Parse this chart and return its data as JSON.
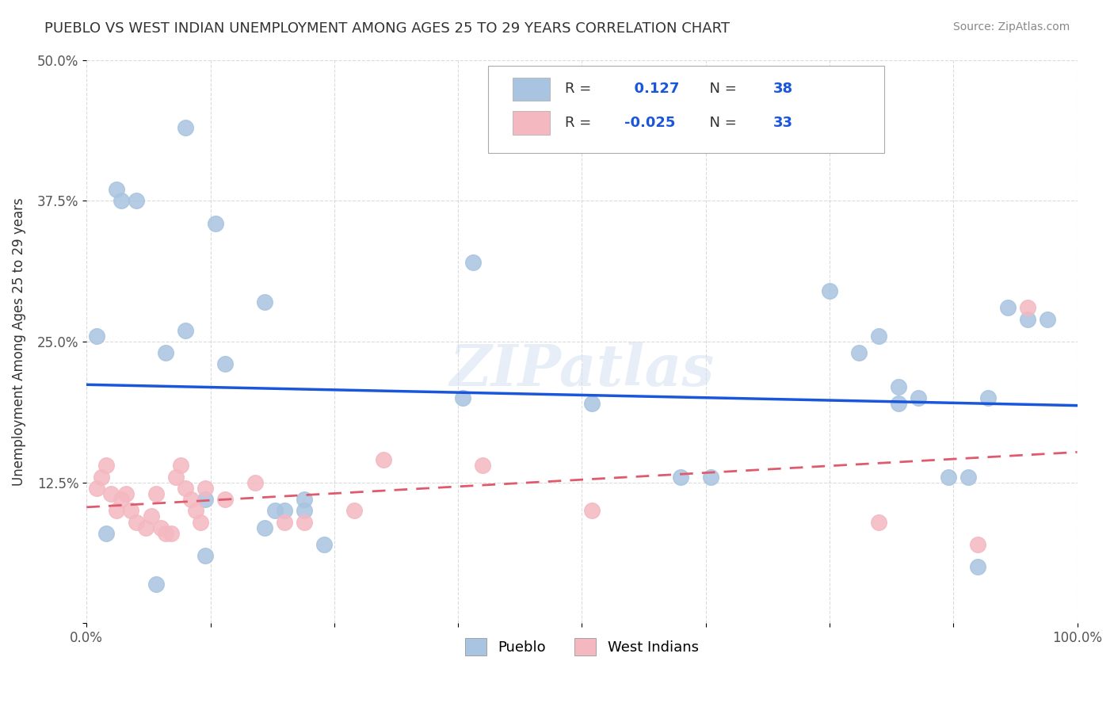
{
  "title": "PUEBLO VS WEST INDIAN UNEMPLOYMENT AMONG AGES 25 TO 29 YEARS CORRELATION CHART",
  "source": "Source: ZipAtlas.com",
  "xlabel": "",
  "ylabel": "Unemployment Among Ages 25 to 29 years",
  "xlim": [
    0,
    1.0
  ],
  "ylim": [
    0,
    0.5
  ],
  "xticks": [
    0.0,
    0.125,
    0.25,
    0.375,
    0.5,
    0.625,
    0.75,
    0.875,
    1.0
  ],
  "xticklabels": [
    "0.0%",
    "",
    "",
    "",
    "",
    "",
    "",
    "",
    "100.0%"
  ],
  "yticks": [
    0.0,
    0.125,
    0.25,
    0.375,
    0.5
  ],
  "yticklabels": [
    "",
    "12.5%",
    "25.0%",
    "37.5%",
    "50.0%"
  ],
  "pueblo_color": "#a8c4e0",
  "west_indian_color": "#f4b8c1",
  "pueblo_line_color": "#1a56db",
  "west_indian_line_color": "#e05a6e",
  "pueblo_r": 0.127,
  "pueblo_n": 38,
  "west_indian_r": -0.025,
  "west_indian_n": 33,
  "watermark": "ZIPatlas",
  "pueblo_x": [
    0.02,
    0.05,
    0.03,
    0.035,
    0.1,
    0.13,
    0.01,
    0.08,
    0.1,
    0.12,
    0.18,
    0.22,
    0.18,
    0.2,
    0.24,
    0.39,
    0.38,
    0.07,
    0.12,
    0.14,
    0.19,
    0.22,
    0.51,
    0.63,
    0.75,
    0.8,
    0.82,
    0.84,
    0.87,
    0.89,
    0.91,
    0.93,
    0.95,
    0.97,
    0.6,
    0.78,
    0.82,
    0.9
  ],
  "pueblo_y": [
    0.08,
    0.375,
    0.385,
    0.375,
    0.44,
    0.355,
    0.255,
    0.24,
    0.26,
    0.11,
    0.285,
    0.11,
    0.085,
    0.1,
    0.07,
    0.32,
    0.2,
    0.035,
    0.06,
    0.23,
    0.1,
    0.1,
    0.195,
    0.13,
    0.295,
    0.255,
    0.195,
    0.2,
    0.13,
    0.13,
    0.2,
    0.28,
    0.27,
    0.27,
    0.13,
    0.24,
    0.21,
    0.05
  ],
  "west_indian_x": [
    0.01,
    0.015,
    0.02,
    0.025,
    0.03,
    0.035,
    0.04,
    0.045,
    0.05,
    0.06,
    0.065,
    0.07,
    0.075,
    0.08,
    0.085,
    0.09,
    0.095,
    0.1,
    0.105,
    0.11,
    0.115,
    0.12,
    0.14,
    0.17,
    0.2,
    0.22,
    0.27,
    0.3,
    0.4,
    0.51,
    0.8,
    0.9,
    0.95
  ],
  "west_indian_y": [
    0.12,
    0.13,
    0.14,
    0.115,
    0.1,
    0.11,
    0.115,
    0.1,
    0.09,
    0.085,
    0.095,
    0.115,
    0.085,
    0.08,
    0.08,
    0.13,
    0.14,
    0.12,
    0.11,
    0.1,
    0.09,
    0.12,
    0.11,
    0.125,
    0.09,
    0.09,
    0.1,
    0.145,
    0.14,
    0.1,
    0.09,
    0.07,
    0.28
  ]
}
